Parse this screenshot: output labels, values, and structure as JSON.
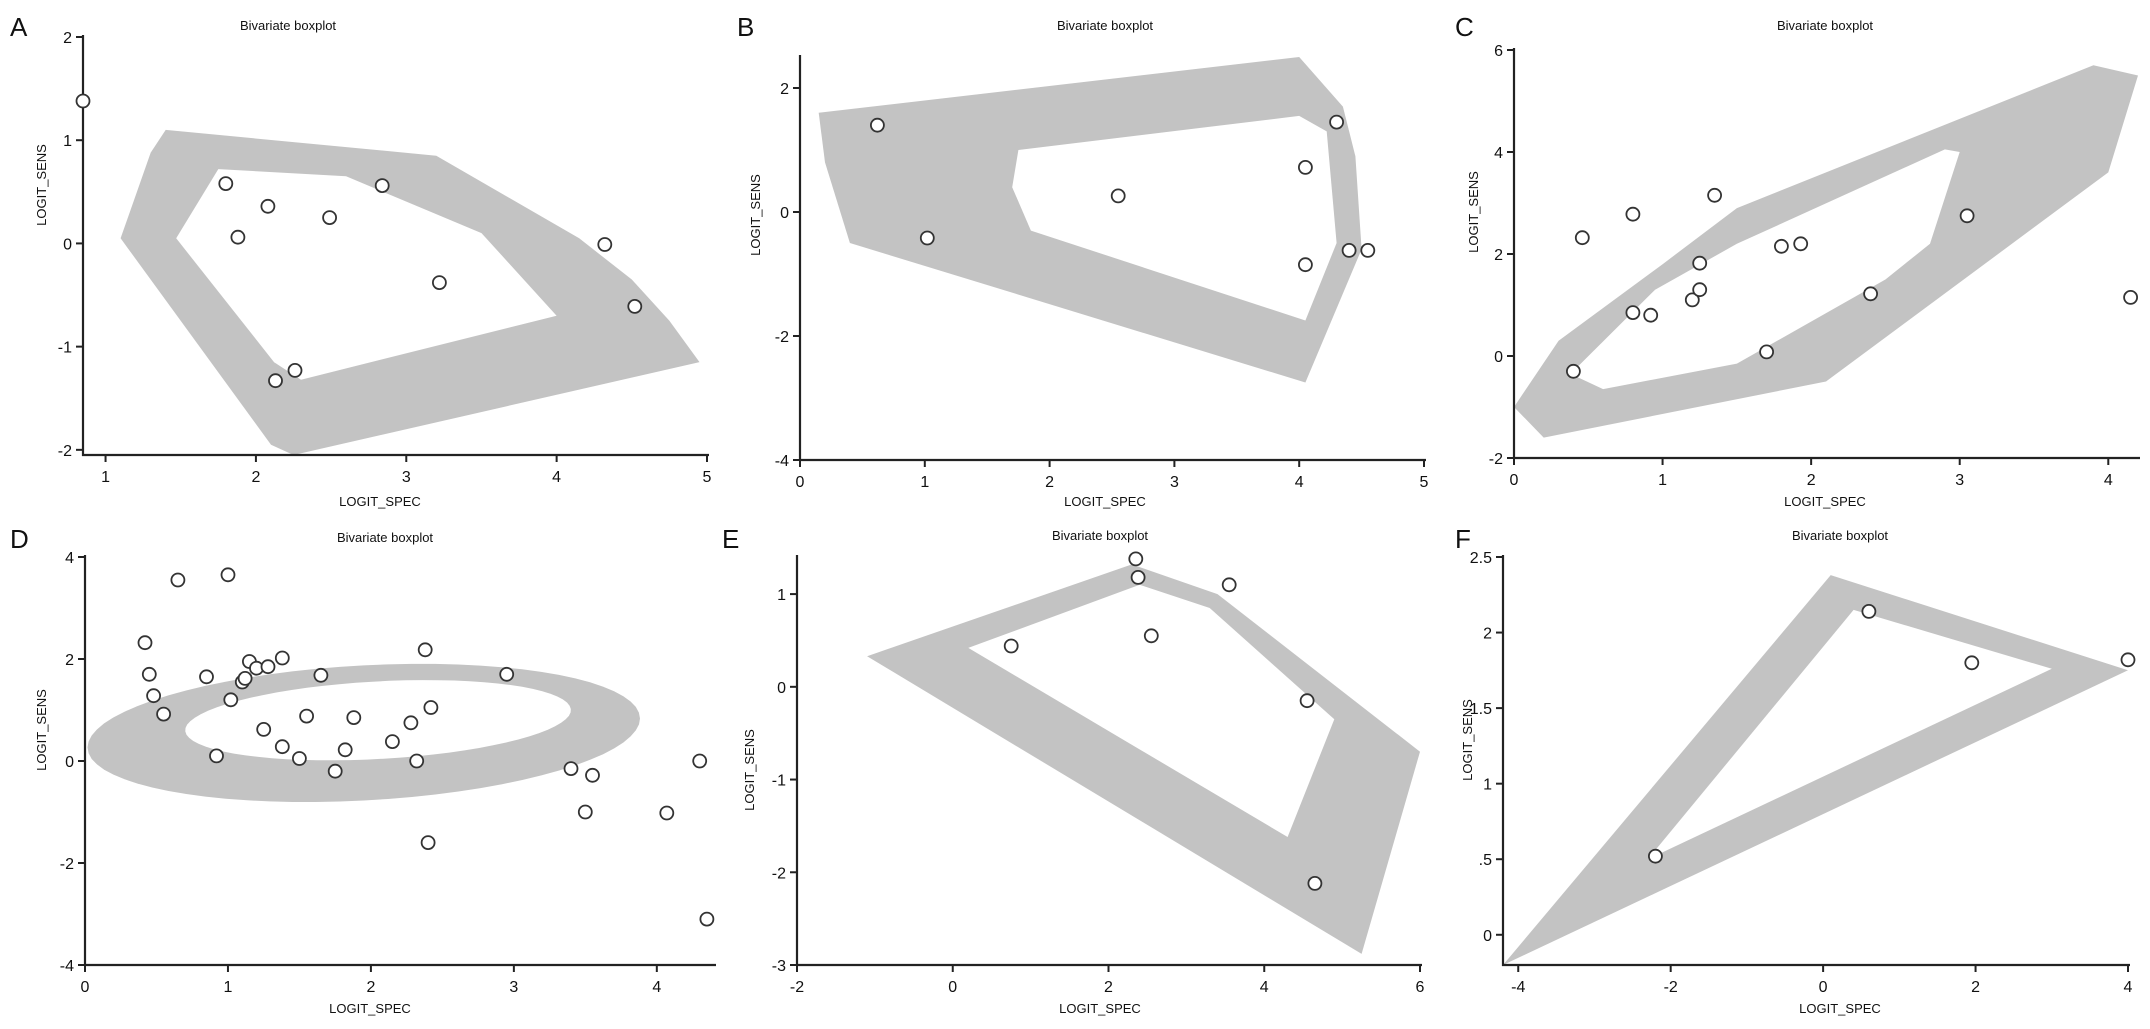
{
  "chart_data": [
    {
      "panel": "A",
      "type": "scatter",
      "title": "Bivariate boxplot",
      "xlabel": "LOGIT_SPEC",
      "ylabel": "LOGIT_SENS",
      "xlim": [
        0.85,
        5
      ],
      "ylim": [
        -2.05,
        2
      ],
      "xticks": [
        1,
        2,
        3,
        4,
        5
      ],
      "yticks": [
        -2,
        -1,
        0,
        1,
        2
      ],
      "xtick_labels": [
        "1",
        "2",
        "3",
        "4",
        "5"
      ],
      "ytick_labels": [
        "-2",
        "-1",
        "0",
        "1",
        "2"
      ],
      "points": [
        [
          0.85,
          1.38
        ],
        [
          1.8,
          0.58
        ],
        [
          1.88,
          0.06
        ],
        [
          2.08,
          0.36
        ],
        [
          2.49,
          0.25
        ],
        [
          2.84,
          0.56
        ],
        [
          3.22,
          -0.38
        ],
        [
          4.32,
          -0.01
        ],
        [
          4.52,
          -0.61
        ],
        [
          2.26,
          -1.23
        ],
        [
          2.13,
          -1.33
        ]
      ],
      "fence": [
        [
          1.1,
          0.05
        ],
        [
          1.3,
          0.88
        ],
        [
          1.4,
          1.1
        ],
        [
          3.2,
          0.85
        ],
        [
          4.15,
          0.05
        ],
        [
          4.5,
          -0.35
        ],
        [
          4.75,
          -0.75
        ],
        [
          4.95,
          -1.15
        ],
        [
          2.25,
          -2.05
        ],
        [
          2.1,
          -1.95
        ]
      ],
      "bag": [
        [
          1.47,
          0.05
        ],
        [
          1.75,
          0.72
        ],
        [
          2.6,
          0.65
        ],
        [
          3.5,
          0.1
        ],
        [
          4.0,
          -0.7
        ],
        [
          2.3,
          -1.32
        ],
        [
          2.12,
          -1.15
        ]
      ]
    },
    {
      "panel": "B",
      "type": "scatter",
      "title": "Bivariate boxplot",
      "xlabel": "LOGIT_SPEC",
      "ylabel": "LOGIT_SENS",
      "xlim": [
        0,
        5
      ],
      "ylim": [
        -4,
        2.5
      ],
      "xticks": [
        0,
        1,
        2,
        3,
        4,
        5
      ],
      "yticks": [
        -4,
        -2,
        0,
        2
      ],
      "xtick_labels": [
        "0",
        "1",
        "2",
        "3",
        "4",
        "5"
      ],
      "ytick_labels": [
        "-4",
        "-2",
        "0",
        "2"
      ],
      "points": [
        [
          0.62,
          1.4
        ],
        [
          1.02,
          -0.42
        ],
        [
          2.55,
          0.26
        ],
        [
          4.05,
          0.72
        ],
        [
          4.3,
          1.45
        ],
        [
          4.05,
          -0.85
        ],
        [
          4.4,
          -0.62
        ],
        [
          4.55,
          -0.62
        ]
      ],
      "fence": [
        [
          0.15,
          1.6
        ],
        [
          4.0,
          2.5
        ],
        [
          4.35,
          1.7
        ],
        [
          4.45,
          0.9
        ],
        [
          4.5,
          -0.6
        ],
        [
          4.05,
          -2.75
        ],
        [
          0.4,
          -0.5
        ],
        [
          0.2,
          0.8
        ]
      ],
      "bag": [
        [
          1.75,
          1.0
        ],
        [
          4.0,
          1.55
        ],
        [
          4.22,
          1.3
        ],
        [
          4.3,
          -0.5
        ],
        [
          4.05,
          -1.75
        ],
        [
          1.85,
          -0.3
        ],
        [
          1.7,
          0.4
        ]
      ]
    },
    {
      "panel": "C",
      "type": "scatter",
      "title": "Bivariate boxplot",
      "xlabel": "LOGIT_SPEC",
      "ylabel": "LOGIT_SENS",
      "xlim": [
        0,
        4.2
      ],
      "ylim": [
        -2,
        6
      ],
      "xticks": [
        0,
        1,
        2,
        3,
        4
      ],
      "yticks": [
        -2,
        0,
        2,
        4,
        6
      ],
      "xtick_labels": [
        "0",
        "1",
        "2",
        "3",
        "4"
      ],
      "ytick_labels": [
        "-2",
        "0",
        "2",
        "4",
        "6"
      ],
      "points": [
        [
          0.46,
          2.32
        ],
        [
          0.8,
          2.78
        ],
        [
          1.35,
          3.15
        ],
        [
          0.4,
          -0.3
        ],
        [
          0.8,
          0.85
        ],
        [
          0.92,
          0.8
        ],
        [
          1.2,
          1.1
        ],
        [
          1.25,
          1.3
        ],
        [
          1.25,
          1.82
        ],
        [
          1.8,
          2.15
        ],
        [
          1.93,
          2.2
        ],
        [
          1.7,
          0.08
        ],
        [
          2.4,
          1.22
        ],
        [
          3.05,
          2.75
        ],
        [
          4.15,
          1.15
        ]
      ],
      "fence": [
        [
          0.0,
          -1.0
        ],
        [
          0.3,
          0.3
        ],
        [
          1.0,
          1.8
        ],
        [
          1.5,
          2.9
        ],
        [
          3.9,
          5.7
        ],
        [
          4.2,
          5.5
        ],
        [
          4.0,
          3.6
        ],
        [
          2.1,
          -0.5
        ],
        [
          0.2,
          -1.6
        ]
      ],
      "bag": [
        [
          0.38,
          -0.35
        ],
        [
          0.95,
          1.3
        ],
        [
          1.5,
          2.2
        ],
        [
          2.9,
          4.05
        ],
        [
          3.0,
          4.0
        ],
        [
          2.8,
          2.2
        ],
        [
          2.5,
          1.5
        ],
        [
          1.5,
          -0.15
        ],
        [
          0.6,
          -0.65
        ]
      ]
    },
    {
      "panel": "D",
      "type": "scatter",
      "title": "Bivariate boxplot",
      "xlabel": "LOGIT_SPEC",
      "ylabel": "LOGIT_SENS",
      "xlim": [
        0,
        4.4
      ],
      "ylim": [
        -4,
        4
      ],
      "xticks": [
        0,
        1,
        2,
        3,
        4
      ],
      "yticks": [
        -4,
        -2,
        0,
        2,
        4
      ],
      "xtick_labels": [
        "0",
        "1",
        "2",
        "3",
        "4"
      ],
      "ytick_labels": [
        "-4",
        "-2",
        "0",
        "2",
        "4"
      ],
      "points": [
        [
          0.65,
          3.55
        ],
        [
          1.0,
          3.65
        ],
        [
          0.42,
          2.32
        ],
        [
          0.45,
          1.7
        ],
        [
          0.48,
          1.28
        ],
        [
          0.55,
          0.92
        ],
        [
          0.92,
          0.1
        ],
        [
          0.85,
          1.65
        ],
        [
          1.02,
          1.2
        ],
        [
          1.1,
          1.55
        ],
        [
          1.12,
          1.62
        ],
        [
          1.15,
          1.95
        ],
        [
          1.2,
          1.82
        ],
        [
          1.28,
          1.85
        ],
        [
          1.38,
          2.02
        ],
        [
          1.25,
          0.62
        ],
        [
          1.38,
          0.28
        ],
        [
          1.5,
          0.05
        ],
        [
          1.55,
          0.88
        ],
        [
          1.65,
          1.68
        ],
        [
          1.75,
          -0.2
        ],
        [
          1.82,
          0.22
        ],
        [
          1.88,
          0.85
        ],
        [
          2.15,
          0.38
        ],
        [
          2.28,
          0.75
        ],
        [
          2.32,
          0.0
        ],
        [
          2.38,
          2.18
        ],
        [
          2.42,
          1.05
        ],
        [
          2.4,
          -1.6
        ],
        [
          2.95,
          1.7
        ],
        [
          3.4,
          -0.15
        ],
        [
          3.5,
          -1.0
        ],
        [
          3.55,
          -0.28
        ],
        [
          4.07,
          -1.02
        ],
        [
          4.3,
          0.0
        ],
        [
          4.35,
          -3.1
        ]
      ],
      "fence_ellipse": {
        "cx": 1.95,
        "cy": 0.55,
        "rx": 1.97,
        "ry": 1.3,
        "angle_deg": 15
      },
      "bag_ellipse": {
        "cx": 2.05,
        "cy": 0.8,
        "rx": 1.37,
        "ry": 0.75,
        "angle_deg": 12
      }
    },
    {
      "panel": "E",
      "type": "scatter",
      "title": "Bivariate boxplot",
      "xlabel": "LOGIT_SPEC",
      "ylabel": "LOGIT_SENS",
      "xlim": [
        -2,
        6
      ],
      "ylim": [
        -3,
        1.4
      ],
      "xticks": [
        -2,
        0,
        2,
        4,
        6
      ],
      "yticks": [
        -3,
        -2,
        -1,
        0,
        1
      ],
      "xtick_labels": [
        "-2",
        "0",
        "2",
        "4",
        "6"
      ],
      "ytick_labels": [
        "-3",
        "-2",
        "-1",
        "0",
        "1"
      ],
      "points": [
        [
          0.75,
          0.44
        ],
        [
          2.35,
          1.38
        ],
        [
          2.38,
          1.18
        ],
        [
          2.55,
          0.55
        ],
        [
          3.55,
          1.1
        ],
        [
          4.55,
          -0.15
        ],
        [
          4.65,
          -2.12
        ]
      ],
      "fence": [
        [
          -1.1,
          0.33
        ],
        [
          2.3,
          1.32
        ],
        [
          3.4,
          1.0
        ],
        [
          6.0,
          -0.7
        ],
        [
          5.25,
          -2.88
        ]
      ],
      "bag": [
        [
          0.2,
          0.42
        ],
        [
          2.4,
          1.1
        ],
        [
          3.3,
          0.85
        ],
        [
          4.9,
          -0.35
        ],
        [
          4.3,
          -1.62
        ]
      ]
    },
    {
      "panel": "F",
      "type": "scatter",
      "title": "Bivariate boxplot",
      "xlabel": "LOGIT_SPEC",
      "ylabel": "LOGIT_SENS",
      "xlim": [
        -4.2,
        4
      ],
      "ylim": [
        -0.2,
        2.5
      ],
      "xticks": [
        -4,
        -2,
        0,
        2,
        4
      ],
      "yticks": [
        0,
        0.5,
        1,
        1.5,
        2,
        2.5
      ],
      "xtick_labels": [
        "-4",
        "-2",
        "0",
        "2",
        "4"
      ],
      "ytick_labels": [
        "0",
        ".5",
        "1",
        "1.5",
        "2",
        "2.5"
      ],
      "points": [
        [
          0.6,
          2.14
        ],
        [
          1.95,
          1.8
        ],
        [
          4.0,
          1.82
        ],
        [
          -2.2,
          0.52
        ]
      ],
      "fence": [
        [
          -4.2,
          -0.2
        ],
        [
          0.1,
          2.38
        ],
        [
          4.0,
          1.75
        ]
      ],
      "bag": [
        [
          -2.3,
          0.5
        ],
        [
          0.4,
          2.15
        ],
        [
          3.0,
          1.76
        ]
      ]
    }
  ]
}
